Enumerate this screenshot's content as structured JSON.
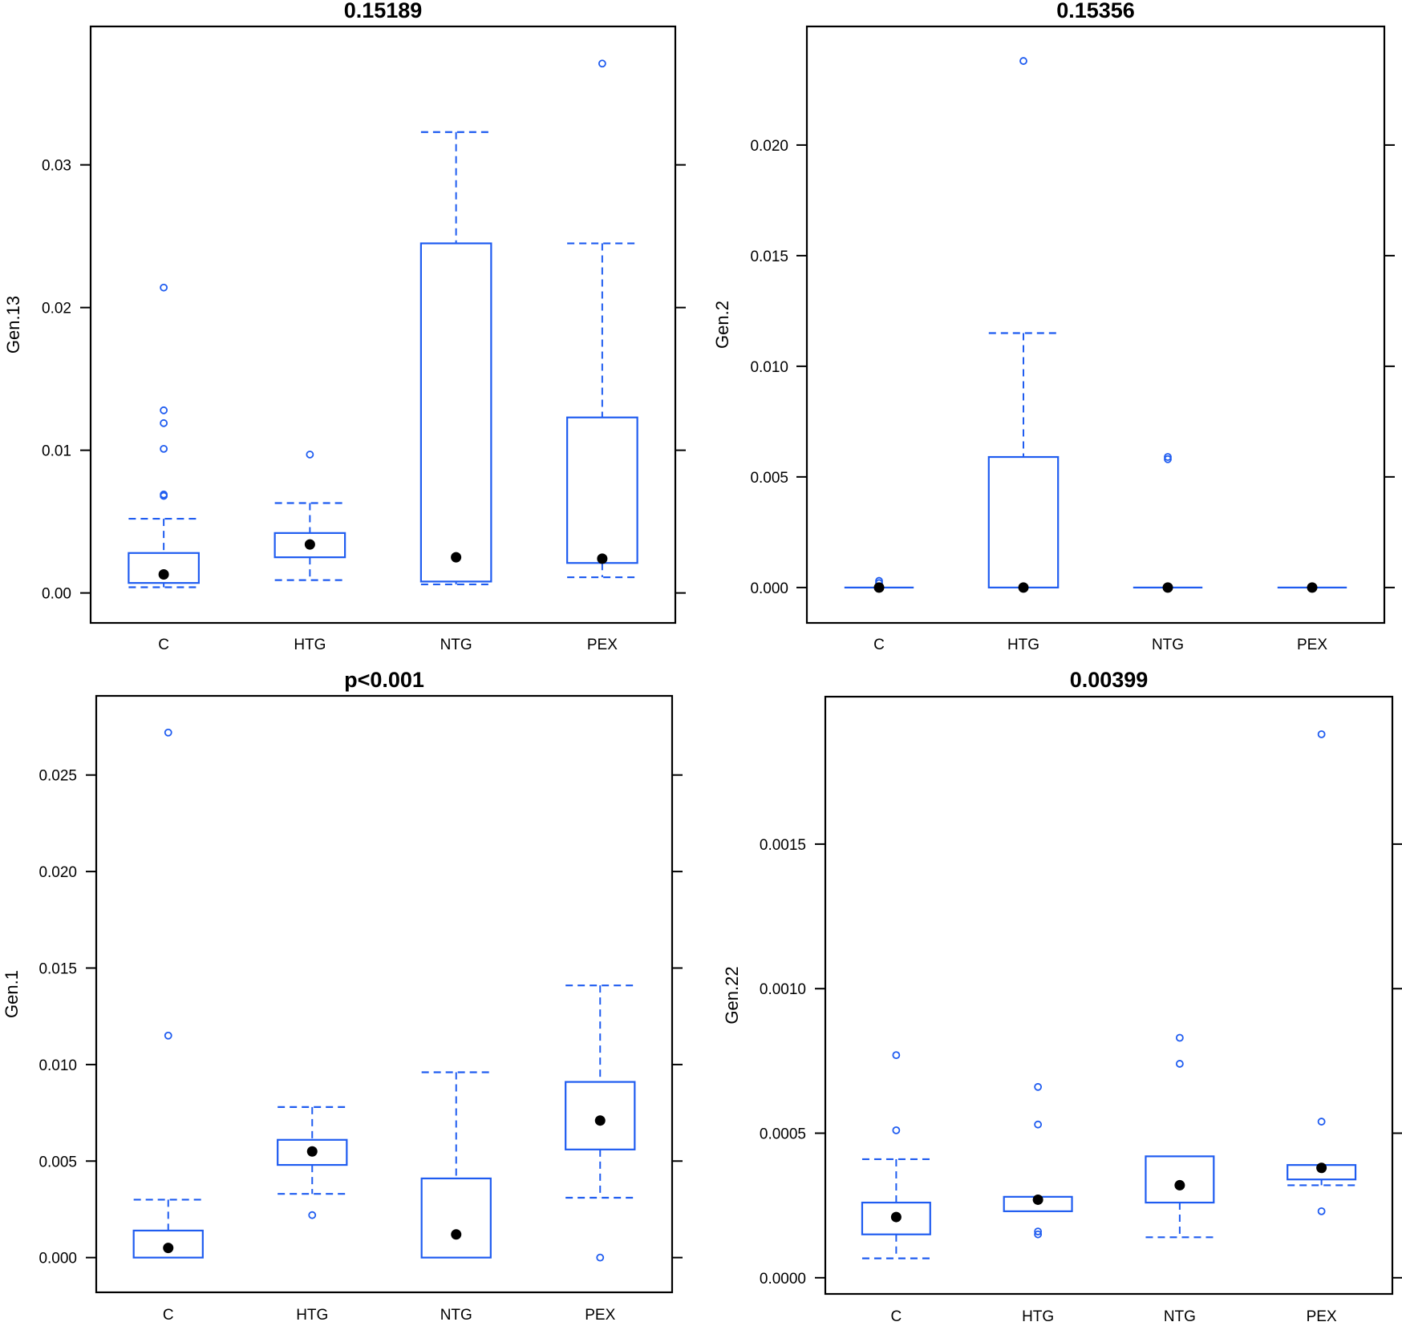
{
  "figure": {
    "colors": {
      "box": "#1f5cf0",
      "median_dot": "#000000",
      "frame": "#000000"
    }
  },
  "chart_data": [
    {
      "type": "box",
      "title": "0.15189",
      "xlabel": "",
      "ylabel": "Gen.13",
      "categories": [
        "C",
        "HTG",
        "NTG",
        "PEX"
      ],
      "yticks": [
        0.0,
        0.01,
        0.02,
        0.03
      ],
      "ytick_labels": [
        "0.00",
        "0.01",
        "0.02",
        "0.03"
      ],
      "ylim": [
        -0.0021,
        0.0397
      ],
      "boxes": [
        {
          "lower": 0.0004,
          "q1": 0.0007,
          "median": 0.0013,
          "q3": 0.0028,
          "upper": 0.0052,
          "outliers": [
            0.0214,
            0.0128,
            0.0119,
            0.0101,
            0.0069,
            0.0068
          ]
        },
        {
          "lower": 0.0009,
          "q1": 0.0025,
          "median": 0.0034,
          "q3": 0.0042,
          "upper": 0.0063,
          "outliers": [
            0.0097
          ]
        },
        {
          "lower": 0.0006,
          "q1": 0.0008,
          "median": 0.0025,
          "q3": 0.0245,
          "upper": 0.0323,
          "outliers": []
        },
        {
          "lower": 0.0011,
          "q1": 0.0021,
          "median": 0.0024,
          "q3": 0.0123,
          "upper": 0.0245,
          "outliers": [
            0.0371
          ]
        }
      ]
    },
    {
      "type": "box",
      "title": "0.15356",
      "xlabel": "",
      "ylabel": "Gen.2",
      "categories": [
        "C",
        "HTG",
        "NTG",
        "PEX"
      ],
      "yticks": [
        0.0,
        0.005,
        0.01,
        0.015,
        0.02
      ],
      "ytick_labels": [
        "0.000",
        "0.005",
        "0.010",
        "0.015",
        "0.020"
      ],
      "ylim": [
        -0.0016,
        0.02536
      ],
      "boxes": [
        {
          "lower": 0.0,
          "q1": 0.0,
          "median": 0.0,
          "q3": 0.0,
          "upper": 0.0,
          "outliers": [
            0.0002,
            0.0003
          ]
        },
        {
          "lower": 0.0,
          "q1": 0.0,
          "median": 0.0,
          "q3": 0.0059,
          "upper": 0.0115,
          "outliers": [
            0.0238
          ]
        },
        {
          "lower": 0.0,
          "q1": 0.0,
          "median": 0.0,
          "q3": 0.0,
          "upper": 0.0,
          "outliers": [
            0.0059,
            0.0058
          ]
        },
        {
          "lower": 0.0,
          "q1": 0.0,
          "median": 0.0,
          "q3": 0.0,
          "upper": 0.0,
          "outliers": []
        }
      ]
    },
    {
      "type": "box",
      "title": "p<0.001",
      "xlabel": "",
      "ylabel": "Gen.1",
      "categories": [
        "C",
        "HTG",
        "NTG",
        "PEX"
      ],
      "yticks": [
        0.0,
        0.005,
        0.01,
        0.015,
        0.02,
        0.025
      ],
      "ytick_labels": [
        "0.000",
        "0.005",
        "0.010",
        "0.015",
        "0.020",
        "0.025"
      ],
      "ylim": [
        -0.0018,
        0.0291
      ],
      "boxes": [
        {
          "lower": 0.0,
          "q1": 0.0,
          "median": 0.0005,
          "q3": 0.0014,
          "upper": 0.003,
          "outliers": [
            0.0272,
            0.0115
          ]
        },
        {
          "lower": 0.0033,
          "q1": 0.0048,
          "median": 0.0055,
          "q3": 0.0061,
          "upper": 0.0078,
          "outliers": [
            0.0022
          ]
        },
        {
          "lower": 0.0,
          "q1": 0.0,
          "median": 0.0012,
          "q3": 0.0041,
          "upper": 0.0096,
          "outliers": []
        },
        {
          "lower": 0.0031,
          "q1": 0.0056,
          "median": 0.0071,
          "q3": 0.0091,
          "upper": 0.0141,
          "outliers": [
            0.0
          ]
        }
      ]
    },
    {
      "type": "box",
      "title": "0.00399",
      "xlabel": "",
      "ylabel": "Gen.22",
      "categories": [
        "C",
        "HTG",
        "NTG",
        "PEX"
      ],
      "yticks": [
        0.0,
        0.0005,
        0.001,
        0.0015
      ],
      "ytick_labels": [
        "0.0000",
        "0.0005",
        "0.0010",
        "0.0015"
      ],
      "ylim": [
        -5.6e-05,
        0.00201
      ],
      "boxes": [
        {
          "lower": 6.7e-05,
          "q1": 0.00015,
          "median": 0.00021,
          "q3": 0.00026,
          "upper": 0.00041,
          "outliers": [
            0.00077,
            0.00051
          ]
        },
        {
          "lower": 0.00023,
          "q1": 0.00023,
          "median": 0.00027,
          "q3": 0.00028,
          "upper": 0.00028,
          "outliers": [
            0.00066,
            0.00053,
            0.00016,
            0.00015
          ]
        },
        {
          "lower": 0.00014,
          "q1": 0.00026,
          "median": 0.00032,
          "q3": 0.00042,
          "upper": 0.00042,
          "outliers": [
            0.00083,
            0.00074
          ]
        },
        {
          "lower": 0.00032,
          "q1": 0.00034,
          "median": 0.00038,
          "q3": 0.00039,
          "upper": 0.00039,
          "outliers": [
            0.00188,
            0.00054,
            0.00023
          ]
        }
      ]
    }
  ]
}
